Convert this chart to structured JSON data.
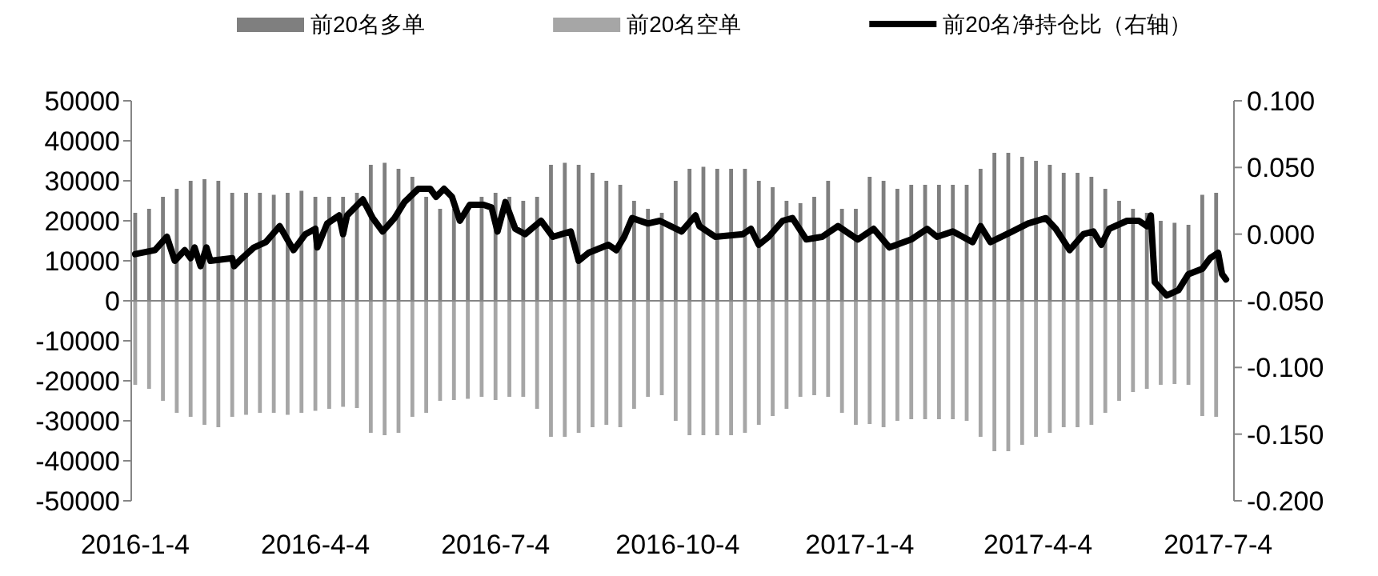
{
  "chart_data": {
    "type": "bar",
    "legend": "top",
    "stacked": true,
    "x": [
      "2016-01-04",
      "2016-01-11",
      "2016-01-18",
      "2016-01-25",
      "2016-02-01",
      "2016-02-08",
      "2016-02-15",
      "2016-02-22",
      "2016-02-29",
      "2016-03-07",
      "2016-03-14",
      "2016-03-21",
      "2016-03-28",
      "2016-04-04",
      "2016-04-11",
      "2016-04-18",
      "2016-04-25",
      "2016-05-02",
      "2016-05-09",
      "2016-05-16",
      "2016-05-23",
      "2016-05-30",
      "2016-06-06",
      "2016-06-13",
      "2016-06-20",
      "2016-06-27",
      "2016-07-04",
      "2016-07-11",
      "2016-07-18",
      "2016-07-25",
      "2016-08-01",
      "2016-08-08",
      "2016-08-15",
      "2016-08-22",
      "2016-08-29",
      "2016-09-05",
      "2016-09-12",
      "2016-09-19",
      "2016-09-26",
      "2016-10-03",
      "2016-10-10",
      "2016-10-17",
      "2016-10-24",
      "2016-10-31",
      "2016-11-07",
      "2016-11-14",
      "2016-11-21",
      "2016-11-28",
      "2016-12-05",
      "2016-12-12",
      "2016-12-19",
      "2016-12-26",
      "2017-01-02",
      "2017-01-09",
      "2017-01-16",
      "2017-01-23",
      "2017-01-30",
      "2017-02-06",
      "2017-02-13",
      "2017-02-20",
      "2017-02-27",
      "2017-03-06",
      "2017-03-13",
      "2017-03-20",
      "2017-03-27",
      "2017-04-03",
      "2017-04-10",
      "2017-04-17",
      "2017-04-24",
      "2017-05-01",
      "2017-05-08",
      "2017-05-15",
      "2017-05-22",
      "2017-05-29",
      "2017-06-05",
      "2017-06-12",
      "2017-06-19",
      "2017-06-26",
      "2017-07-03"
    ],
    "series": [
      {
        "name": "前20名多单",
        "color": "#7f7f7f",
        "values": [
          22000,
          23000,
          26000,
          28000,
          30000,
          30400,
          30000,
          27000,
          27000,
          27000,
          26500,
          27000,
          27500,
          26000,
          26000,
          26000,
          27000,
          34000,
          34500,
          33000,
          31000,
          26000,
          23000,
          23000,
          23000,
          26000,
          27000,
          26000,
          25000,
          26000,
          34000,
          34500,
          34000,
          32000,
          30000,
          29000,
          25000,
          23000,
          22000,
          30000,
          33000,
          33500,
          33000,
          33000,
          33000,
          30000,
          28400,
          25000,
          24400,
          26000,
          30000,
          23000,
          23000,
          31000,
          30000,
          28000,
          29000,
          29000,
          29000,
          29000,
          29000,
          33000,
          37000,
          37000,
          36000,
          35000,
          34000,
          32000,
          32000,
          31000,
          28000,
          25000,
          23000,
          22000,
          20000,
          19500,
          19000,
          26500,
          27000
        ]
      },
      {
        "name": "前20名空单",
        "color": "#a6a6a6",
        "values": [
          -21000,
          -22000,
          -25000,
          -28000,
          -29000,
          -31000,
          -31600,
          -29000,
          -28500,
          -28000,
          -28000,
          -28500,
          -28000,
          -27500,
          -27000,
          -26500,
          -26800,
          -33000,
          -33600,
          -33000,
          -29000,
          -28000,
          -25000,
          -24800,
          -24500,
          -24000,
          -24800,
          -24000,
          -24000,
          -27000,
          -34000,
          -34000,
          -33000,
          -31600,
          -31000,
          -31600,
          -27000,
          -24000,
          -23600,
          -30000,
          -33600,
          -33600,
          -33600,
          -33600,
          -33000,
          -31000,
          -28800,
          -27000,
          -24000,
          -23600,
          -24000,
          -28000,
          -31000,
          -30800,
          -31600,
          -30000,
          -29600,
          -29600,
          -29600,
          -29600,
          -30000,
          -34000,
          -37600,
          -37600,
          -36000,
          -34000,
          -33000,
          -31600,
          -31600,
          -31000,
          -28000,
          -25000,
          -22800,
          -22000,
          -21000,
          -20800,
          -21000,
          -28800,
          -29000
        ]
      },
      {
        "name": "前20名净持仓比（右轴）",
        "type": "line",
        "axis": "y2",
        "color": "#000000",
        "x": [
          "2016-01-04",
          "2016-01-14",
          "2016-01-20",
          "2016-01-24",
          "2016-01-29",
          "2016-02-01",
          "2016-02-03",
          "2016-02-06",
          "2016-02-09",
          "2016-02-11",
          "2016-02-22",
          "2016-02-23",
          "2016-02-27",
          "2016-03-04",
          "2016-03-10",
          "2016-03-17",
          "2016-03-24",
          "2016-03-30",
          "2016-04-04",
          "2016-04-05",
          "2016-04-10",
          "2016-04-16",
          "2016-04-18",
          "2016-04-20",
          "2016-04-28",
          "2016-05-03",
          "2016-05-08",
          "2016-05-14",
          "2016-05-19",
          "2016-05-26",
          "2016-06-01",
          "2016-06-04",
          "2016-06-08",
          "2016-06-12",
          "2016-06-16",
          "2016-06-21",
          "2016-06-28",
          "2016-07-02",
          "2016-07-05",
          "2016-07-09",
          "2016-07-14",
          "2016-07-19",
          "2016-07-27",
          "2016-08-02",
          "2016-08-11",
          "2016-08-15",
          "2016-08-20",
          "2016-08-30",
          "2016-09-03",
          "2016-09-07",
          "2016-09-11",
          "2016-09-19",
          "2016-09-25",
          "2016-10-06",
          "2016-10-13",
          "2016-10-15",
          "2016-10-23",
          "2016-11-06",
          "2016-11-10",
          "2016-11-14",
          "2016-11-19",
          "2016-11-26",
          "2016-12-01",
          "2016-12-08",
          "2016-12-16",
          "2016-12-24",
          "2017-01-03",
          "2017-01-09",
          "2017-01-11",
          "2017-01-19",
          "2017-01-30",
          "2017-02-07",
          "2017-02-12",
          "2017-02-20",
          "2017-03-02",
          "2017-03-06",
          "2017-03-11",
          "2017-03-22",
          "2017-03-30",
          "2017-04-08",
          "2017-04-13",
          "2017-04-20",
          "2017-04-27",
          "2017-05-02",
          "2017-05-06",
          "2017-05-10",
          "2017-05-19",
          "2017-05-25",
          "2017-05-29",
          "2017-05-31",
          "2017-06-02",
          "2017-06-08",
          "2017-06-14",
          "2017-06-19",
          "2017-06-26",
          "2017-06-30",
          "2017-07-04",
          "2017-07-06",
          "2017-07-08"
        ],
        "values": [
          -0.015,
          -0.012,
          -0.002,
          -0.02,
          -0.012,
          -0.018,
          -0.01,
          -0.024,
          -0.01,
          -0.02,
          -0.018,
          -0.024,
          -0.018,
          -0.01,
          -0.006,
          0.006,
          -0.012,
          0.0,
          0.004,
          -0.01,
          0.008,
          0.014,
          0.0,
          0.014,
          0.026,
          0.012,
          0.002,
          0.012,
          0.024,
          0.034,
          0.034,
          0.028,
          0.034,
          0.028,
          0.01,
          0.022,
          0.022,
          0.02,
          0.002,
          0.024,
          0.004,
          0.0,
          0.01,
          -0.002,
          0.002,
          -0.02,
          -0.014,
          -0.008,
          -0.012,
          -0.002,
          0.012,
          0.008,
          0.01,
          0.002,
          0.014,
          0.006,
          -0.002,
          0.0,
          0.004,
          -0.008,
          -0.002,
          0.01,
          0.012,
          -0.004,
          -0.002,
          0.006,
          -0.004,
          0.002,
          0.004,
          -0.01,
          -0.004,
          0.004,
          -0.002,
          0.002,
          -0.006,
          0.006,
          -0.006,
          0.002,
          0.008,
          0.012,
          0.004,
          -0.012,
          0.0,
          0.002,
          -0.008,
          0.004,
          0.01,
          0.01,
          0.006,
          0.014,
          -0.036,
          -0.046,
          -0.042,
          -0.03,
          -0.026,
          -0.018,
          -0.014,
          -0.03,
          -0.034
        ]
      }
    ],
    "xlim": [
      "2016-01-02",
      "2017-07-12"
    ],
    "xticks": [
      {
        "value": "2016-01-04",
        "label": "2016-1-4"
      },
      {
        "value": "2016-04-04",
        "label": "2016-4-4"
      },
      {
        "value": "2016-07-04",
        "label": "2016-7-4"
      },
      {
        "value": "2016-10-04",
        "label": "2016-10-4"
      },
      {
        "value": "2017-01-04",
        "label": "2017-1-4"
      },
      {
        "value": "2017-04-04",
        "label": "2017-4-4"
      },
      {
        "value": "2017-07-04",
        "label": "2017-7-4"
      }
    ],
    "ylim": [
      -50000,
      50000
    ],
    "yticks": [
      -50000,
      -40000,
      -30000,
      -20000,
      -10000,
      0,
      10000,
      20000,
      30000,
      40000,
      50000
    ],
    "y2lim": [
      -0.2,
      0.1
    ],
    "y2ticks": [
      {
        "value": -0.2,
        "label": "-0.200"
      },
      {
        "value": -0.15,
        "label": "-0.150"
      },
      {
        "value": -0.1,
        "label": "-0.100"
      },
      {
        "value": -0.05,
        "label": "-0.050"
      },
      {
        "value": 0,
        "label": "0.000"
      },
      {
        "value": 0.05,
        "label": "0.050"
      },
      {
        "value": 0.1,
        "label": "0.100"
      }
    ]
  }
}
